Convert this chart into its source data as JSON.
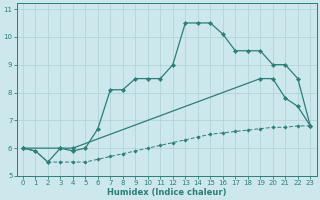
{
  "xlabel": "Humidex (Indice chaleur)",
  "background_color": "#cce8ec",
  "grid_color": "#b0d0d4",
  "line_color": "#2d7d78",
  "ylim": [
    5.0,
    11.2
  ],
  "xlim": [
    -0.5,
    23.5
  ],
  "line1_x": [
    0,
    1,
    2,
    3,
    4,
    5,
    6,
    7,
    8,
    9,
    10,
    11,
    12,
    13,
    14,
    15,
    16,
    17,
    18,
    19,
    20,
    21,
    22,
    23
  ],
  "line1_y": [
    6.0,
    5.9,
    5.5,
    6.0,
    5.9,
    6.0,
    6.7,
    8.1,
    8.1,
    8.5,
    8.5,
    8.5,
    9.0,
    10.5,
    10.5,
    10.5,
    10.1,
    9.5,
    9.5,
    9.5,
    9.0,
    9.0,
    8.5,
    6.8
  ],
  "line2_x": [
    0,
    1,
    2,
    3,
    4,
    5,
    6,
    7,
    8,
    9,
    10,
    11,
    12,
    13,
    14,
    15,
    16,
    17,
    18,
    19,
    20,
    21,
    22,
    23
  ],
  "line2_y": [
    6.0,
    5.9,
    5.5,
    5.5,
    5.5,
    5.5,
    5.6,
    5.7,
    5.8,
    5.9,
    6.0,
    6.1,
    6.2,
    6.3,
    6.4,
    6.5,
    6.55,
    6.6,
    6.65,
    6.7,
    6.75,
    6.75,
    6.8,
    6.8
  ],
  "line3_x": [
    0,
    3,
    4,
    19,
    20,
    21,
    22,
    23
  ],
  "line3_y": [
    6.0,
    6.0,
    6.0,
    8.5,
    8.5,
    7.8,
    7.5,
    6.8
  ]
}
